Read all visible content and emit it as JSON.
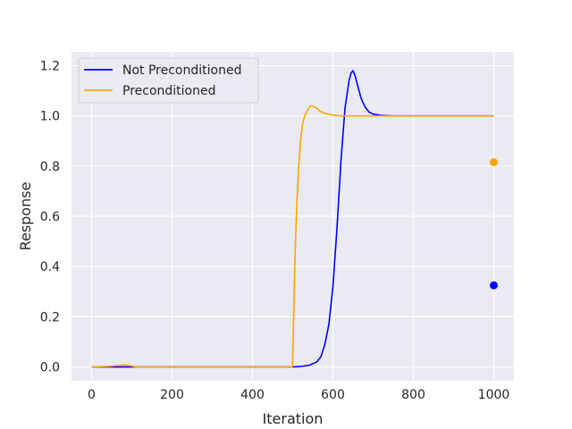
{
  "chart_data": {
    "type": "line",
    "xlabel": "Iteration",
    "ylabel": "Response",
    "xlim": [
      -50,
      1050
    ],
    "ylim": [
      -0.055,
      1.255
    ],
    "xticks": [
      0,
      200,
      400,
      600,
      800,
      1000
    ],
    "yticks": [
      0.0,
      0.2,
      0.4,
      0.6,
      0.8,
      1.0,
      1.2
    ],
    "grid": true,
    "legend_position": "top-left",
    "series": [
      {
        "name": "Not Preconditioned",
        "color": "#0000ff",
        "x": [
          0,
          100,
          200,
          300,
          400,
          500,
          520,
          540,
          560,
          570,
          580,
          590,
          600,
          610,
          620,
          630,
          640,
          645,
          650,
          655,
          660,
          670,
          680,
          690,
          700,
          720,
          750,
          800,
          900,
          1000
        ],
        "y": [
          0,
          0,
          0,
          0,
          0,
          0,
          0.002,
          0.006,
          0.02,
          0.04,
          0.09,
          0.17,
          0.32,
          0.55,
          0.82,
          1.03,
          1.14,
          1.17,
          1.18,
          1.16,
          1.13,
          1.07,
          1.035,
          1.015,
          1.007,
          1.002,
          1.0,
          1.0,
          1.0,
          1.0
        ]
      },
      {
        "name": "Preconditioned",
        "color": "#ffa500",
        "x": [
          0,
          40,
          80,
          95,
          110,
          130,
          200,
          300,
          400,
          499,
          500,
          503,
          506,
          510,
          515,
          520,
          525,
          530,
          540,
          545,
          550,
          560,
          570,
          580,
          600,
          620,
          650,
          700,
          800,
          1000
        ],
        "y": [
          0,
          0.002,
          0.008,
          0.005,
          0.0,
          0.0,
          0.0,
          0.0,
          0.0,
          0.0,
          0.03,
          0.25,
          0.45,
          0.64,
          0.8,
          0.91,
          0.97,
          1.0,
          1.03,
          1.04,
          1.038,
          1.03,
          1.017,
          1.01,
          1.003,
          1.0,
          1.0,
          1.0,
          1.0,
          1.0
        ]
      }
    ],
    "points": [
      {
        "x": 1000,
        "y": 0.815,
        "color": "#ffa500"
      },
      {
        "x": 1000,
        "y": 0.325,
        "color": "#0000ff"
      }
    ]
  }
}
